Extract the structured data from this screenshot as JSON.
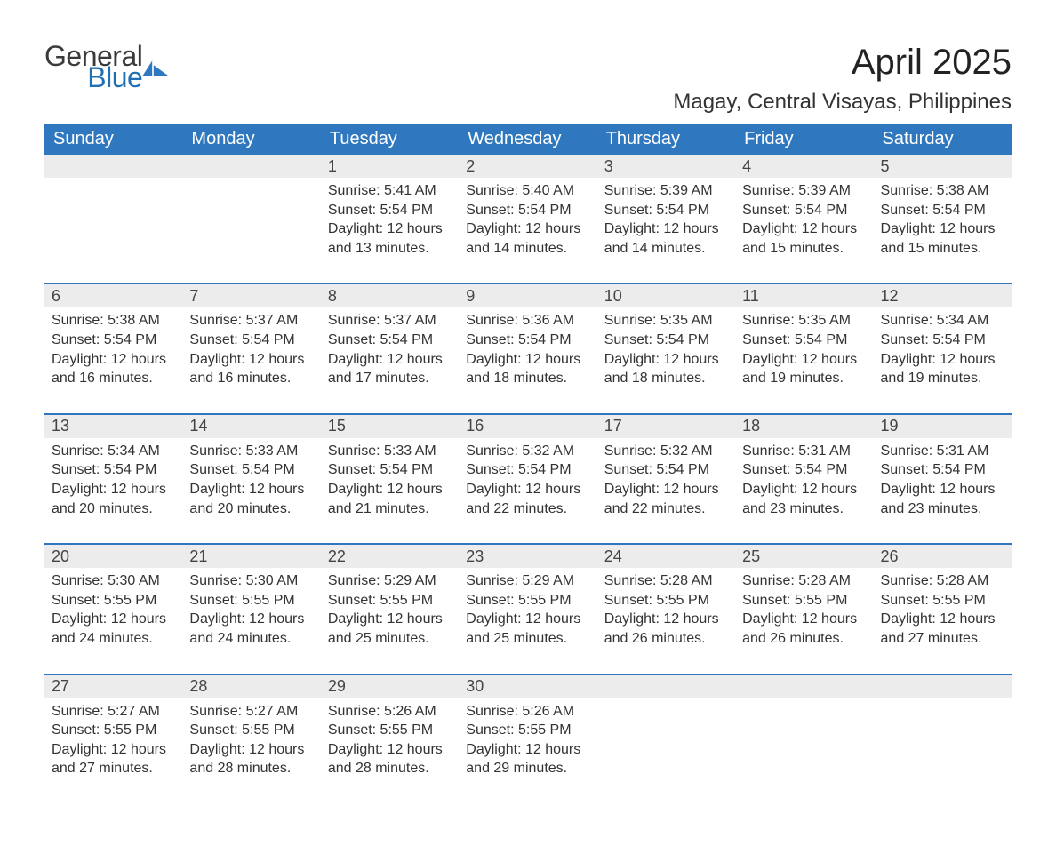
{
  "logo": {
    "word1": "General",
    "word2": "Blue",
    "icon_color": "#2f78bf"
  },
  "title": "April 2025",
  "location": "Magay, Central Visayas, Philippines",
  "colors": {
    "header_bg": "#2f78bf",
    "header_text": "#ffffff",
    "daynum_bg": "#ececec",
    "sep_line": "#2f78bf",
    "body_text": "#333333",
    "page_bg": "#ffffff"
  },
  "weekdays": [
    "Sunday",
    "Monday",
    "Tuesday",
    "Wednesday",
    "Thursday",
    "Friday",
    "Saturday"
  ],
  "weeks": [
    [
      null,
      null,
      {
        "n": "1",
        "sunrise": "Sunrise: 5:41 AM",
        "sunset": "Sunset: 5:54 PM",
        "d1": "Daylight: 12 hours",
        "d2": "and 13 minutes."
      },
      {
        "n": "2",
        "sunrise": "Sunrise: 5:40 AM",
        "sunset": "Sunset: 5:54 PM",
        "d1": "Daylight: 12 hours",
        "d2": "and 14 minutes."
      },
      {
        "n": "3",
        "sunrise": "Sunrise: 5:39 AM",
        "sunset": "Sunset: 5:54 PM",
        "d1": "Daylight: 12 hours",
        "d2": "and 14 minutes."
      },
      {
        "n": "4",
        "sunrise": "Sunrise: 5:39 AM",
        "sunset": "Sunset: 5:54 PM",
        "d1": "Daylight: 12 hours",
        "d2": "and 15 minutes."
      },
      {
        "n": "5",
        "sunrise": "Sunrise: 5:38 AM",
        "sunset": "Sunset: 5:54 PM",
        "d1": "Daylight: 12 hours",
        "d2": "and 15 minutes."
      }
    ],
    [
      {
        "n": "6",
        "sunrise": "Sunrise: 5:38 AM",
        "sunset": "Sunset: 5:54 PM",
        "d1": "Daylight: 12 hours",
        "d2": "and 16 minutes."
      },
      {
        "n": "7",
        "sunrise": "Sunrise: 5:37 AM",
        "sunset": "Sunset: 5:54 PM",
        "d1": "Daylight: 12 hours",
        "d2": "and 16 minutes."
      },
      {
        "n": "8",
        "sunrise": "Sunrise: 5:37 AM",
        "sunset": "Sunset: 5:54 PM",
        "d1": "Daylight: 12 hours",
        "d2": "and 17 minutes."
      },
      {
        "n": "9",
        "sunrise": "Sunrise: 5:36 AM",
        "sunset": "Sunset: 5:54 PM",
        "d1": "Daylight: 12 hours",
        "d2": "and 18 minutes."
      },
      {
        "n": "10",
        "sunrise": "Sunrise: 5:35 AM",
        "sunset": "Sunset: 5:54 PM",
        "d1": "Daylight: 12 hours",
        "d2": "and 18 minutes."
      },
      {
        "n": "11",
        "sunrise": "Sunrise: 5:35 AM",
        "sunset": "Sunset: 5:54 PM",
        "d1": "Daylight: 12 hours",
        "d2": "and 19 minutes."
      },
      {
        "n": "12",
        "sunrise": "Sunrise: 5:34 AM",
        "sunset": "Sunset: 5:54 PM",
        "d1": "Daylight: 12 hours",
        "d2": "and 19 minutes."
      }
    ],
    [
      {
        "n": "13",
        "sunrise": "Sunrise: 5:34 AM",
        "sunset": "Sunset: 5:54 PM",
        "d1": "Daylight: 12 hours",
        "d2": "and 20 minutes."
      },
      {
        "n": "14",
        "sunrise": "Sunrise: 5:33 AM",
        "sunset": "Sunset: 5:54 PM",
        "d1": "Daylight: 12 hours",
        "d2": "and 20 minutes."
      },
      {
        "n": "15",
        "sunrise": "Sunrise: 5:33 AM",
        "sunset": "Sunset: 5:54 PM",
        "d1": "Daylight: 12 hours",
        "d2": "and 21 minutes."
      },
      {
        "n": "16",
        "sunrise": "Sunrise: 5:32 AM",
        "sunset": "Sunset: 5:54 PM",
        "d1": "Daylight: 12 hours",
        "d2": "and 22 minutes."
      },
      {
        "n": "17",
        "sunrise": "Sunrise: 5:32 AM",
        "sunset": "Sunset: 5:54 PM",
        "d1": "Daylight: 12 hours",
        "d2": "and 22 minutes."
      },
      {
        "n": "18",
        "sunrise": "Sunrise: 5:31 AM",
        "sunset": "Sunset: 5:54 PM",
        "d1": "Daylight: 12 hours",
        "d2": "and 23 minutes."
      },
      {
        "n": "19",
        "sunrise": "Sunrise: 5:31 AM",
        "sunset": "Sunset: 5:54 PM",
        "d1": "Daylight: 12 hours",
        "d2": "and 23 minutes."
      }
    ],
    [
      {
        "n": "20",
        "sunrise": "Sunrise: 5:30 AM",
        "sunset": "Sunset: 5:55 PM",
        "d1": "Daylight: 12 hours",
        "d2": "and 24 minutes."
      },
      {
        "n": "21",
        "sunrise": "Sunrise: 5:30 AM",
        "sunset": "Sunset: 5:55 PM",
        "d1": "Daylight: 12 hours",
        "d2": "and 24 minutes."
      },
      {
        "n": "22",
        "sunrise": "Sunrise: 5:29 AM",
        "sunset": "Sunset: 5:55 PM",
        "d1": "Daylight: 12 hours",
        "d2": "and 25 minutes."
      },
      {
        "n": "23",
        "sunrise": "Sunrise: 5:29 AM",
        "sunset": "Sunset: 5:55 PM",
        "d1": "Daylight: 12 hours",
        "d2": "and 25 minutes."
      },
      {
        "n": "24",
        "sunrise": "Sunrise: 5:28 AM",
        "sunset": "Sunset: 5:55 PM",
        "d1": "Daylight: 12 hours",
        "d2": "and 26 minutes."
      },
      {
        "n": "25",
        "sunrise": "Sunrise: 5:28 AM",
        "sunset": "Sunset: 5:55 PM",
        "d1": "Daylight: 12 hours",
        "d2": "and 26 minutes."
      },
      {
        "n": "26",
        "sunrise": "Sunrise: 5:28 AM",
        "sunset": "Sunset: 5:55 PM",
        "d1": "Daylight: 12 hours",
        "d2": "and 27 minutes."
      }
    ],
    [
      {
        "n": "27",
        "sunrise": "Sunrise: 5:27 AM",
        "sunset": "Sunset: 5:55 PM",
        "d1": "Daylight: 12 hours",
        "d2": "and 27 minutes."
      },
      {
        "n": "28",
        "sunrise": "Sunrise: 5:27 AM",
        "sunset": "Sunset: 5:55 PM",
        "d1": "Daylight: 12 hours",
        "d2": "and 28 minutes."
      },
      {
        "n": "29",
        "sunrise": "Sunrise: 5:26 AM",
        "sunset": "Sunset: 5:55 PM",
        "d1": "Daylight: 12 hours",
        "d2": "and 28 minutes."
      },
      {
        "n": "30",
        "sunrise": "Sunrise: 5:26 AM",
        "sunset": "Sunset: 5:55 PM",
        "d1": "Daylight: 12 hours",
        "d2": "and 29 minutes."
      },
      null,
      null,
      null
    ]
  ]
}
